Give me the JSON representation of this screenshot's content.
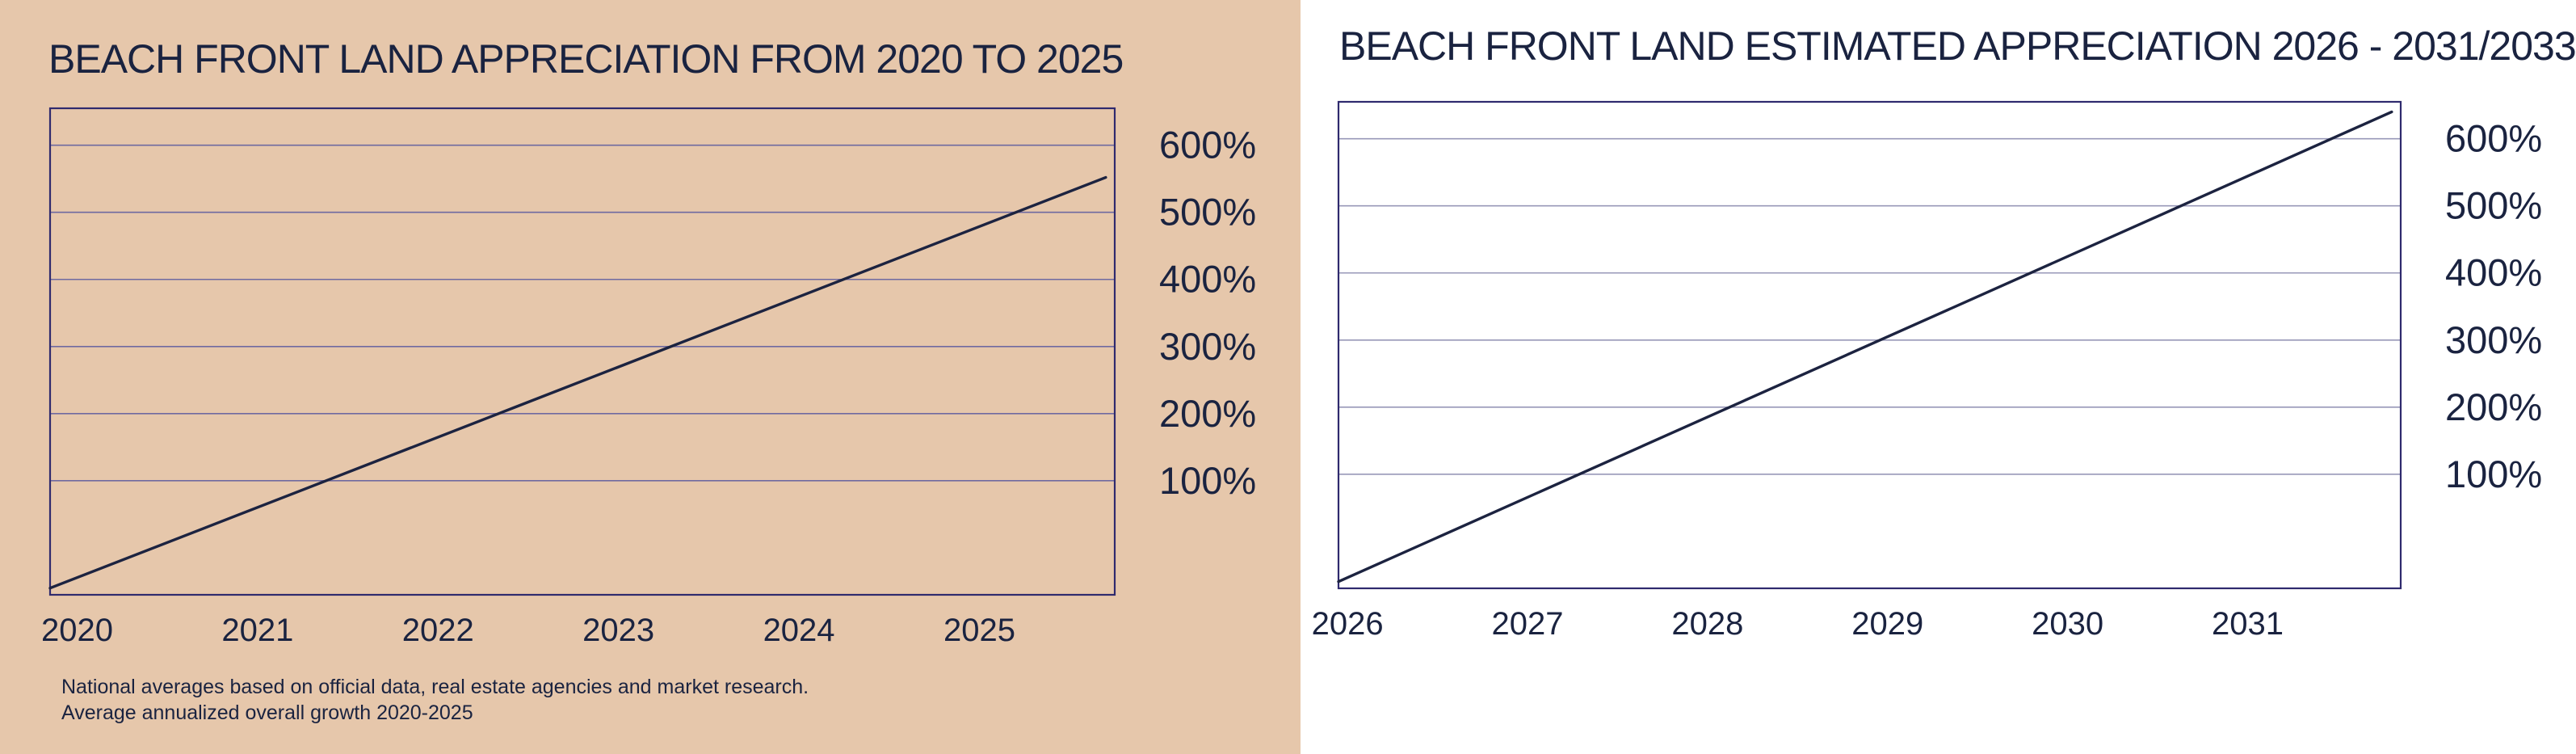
{
  "chart_data": [
    {
      "type": "line",
      "title": "BEACH FRONT LAND APPRECIATION FROM 2020 TO 2025",
      "xlabel": "",
      "ylabel": "",
      "x_tick_labels": [
        "2020",
        "2021",
        "2022",
        "2023",
        "2024",
        "2025"
      ],
      "y_tick_labels": [
        "100%",
        "200%",
        "300%",
        "400%",
        "500%",
        "600%"
      ],
      "xlim": [
        2019.85,
        2025.75
      ],
      "ylim": [
        -70,
        655
      ],
      "grid": true,
      "series": [
        {
          "x": [
            2019.85,
            2025.7
          ],
          "y": [
            -60,
            552
          ]
        }
      ],
      "colors": {
        "line": "#1c2340",
        "grid": "#6f6aa0",
        "frame": "#2f2a6e"
      },
      "notes": [
        "National averages based on official data, real estate agencies and market research.",
        "Average annualized overall growth 2020-2025"
      ]
    },
    {
      "type": "line",
      "title": "BEACH FRONT LAND ESTIMATED APPRECIATION 2026 - 2031/2033",
      "xlabel": "",
      "ylabel": "",
      "x_tick_labels": [
        "2026",
        "2027",
        "2028",
        "2029",
        "2030",
        "2031"
      ],
      "y_tick_labels": [
        "100%",
        "200%",
        "300%",
        "400%",
        "500%",
        "600%"
      ],
      "xlim": [
        2025.95,
        2031.85
      ],
      "ylim": [
        -70,
        655
      ],
      "grid": true,
      "series": [
        {
          "x": [
            2025.95,
            2031.8
          ],
          "y": [
            -60,
            640
          ]
        }
      ],
      "colors": {
        "line": "#1c2340",
        "grid": "#9898b8",
        "frame": "#2f2a6e"
      }
    }
  ]
}
